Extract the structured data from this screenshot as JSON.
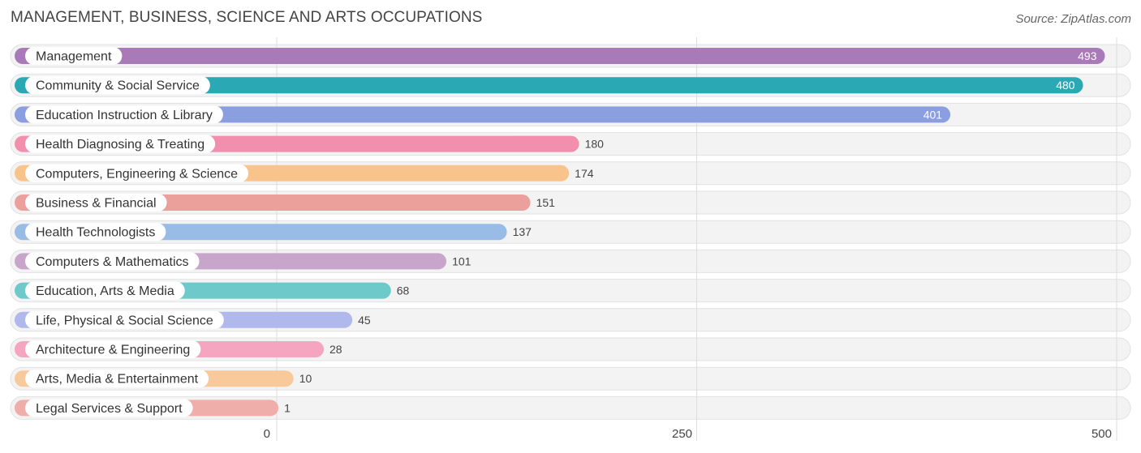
{
  "header": {
    "title": "MANAGEMENT, BUSINESS, SCIENCE AND ARTS OCCUPATIONS",
    "source": "Source: ZipAtlas.com"
  },
  "chart_data": {
    "type": "bar",
    "orientation": "horizontal",
    "title": "MANAGEMENT, BUSINESS, SCIENCE AND ARTS OCCUPATIONS",
    "xlabel": "",
    "ylabel": "",
    "xlim": [
      0,
      500
    ],
    "xticks": [
      0,
      250,
      500
    ],
    "grid": true,
    "categories": [
      "Management",
      "Community & Social Service",
      "Education Instruction & Library",
      "Health Diagnosing & Treating",
      "Computers, Engineering & Science",
      "Business & Financial",
      "Health Technologists",
      "Computers & Mathematics",
      "Education, Arts & Media",
      "Life, Physical & Social Science",
      "Architecture & Engineering",
      "Arts, Media & Entertainment",
      "Legal Services & Support"
    ],
    "values": [
      493,
      480,
      401,
      180,
      174,
      151,
      137,
      101,
      68,
      45,
      28,
      10,
      1
    ],
    "colors": [
      "#a87ab7",
      "#2aa8b4",
      "#8b9ee0",
      "#f28fae",
      "#f8c48c",
      "#eba09c",
      "#98bce6",
      "#c8a6cc",
      "#6ec9cb",
      "#b0b8ec",
      "#f5a5bf",
      "#f8c99a",
      "#f0aeaa"
    ]
  }
}
